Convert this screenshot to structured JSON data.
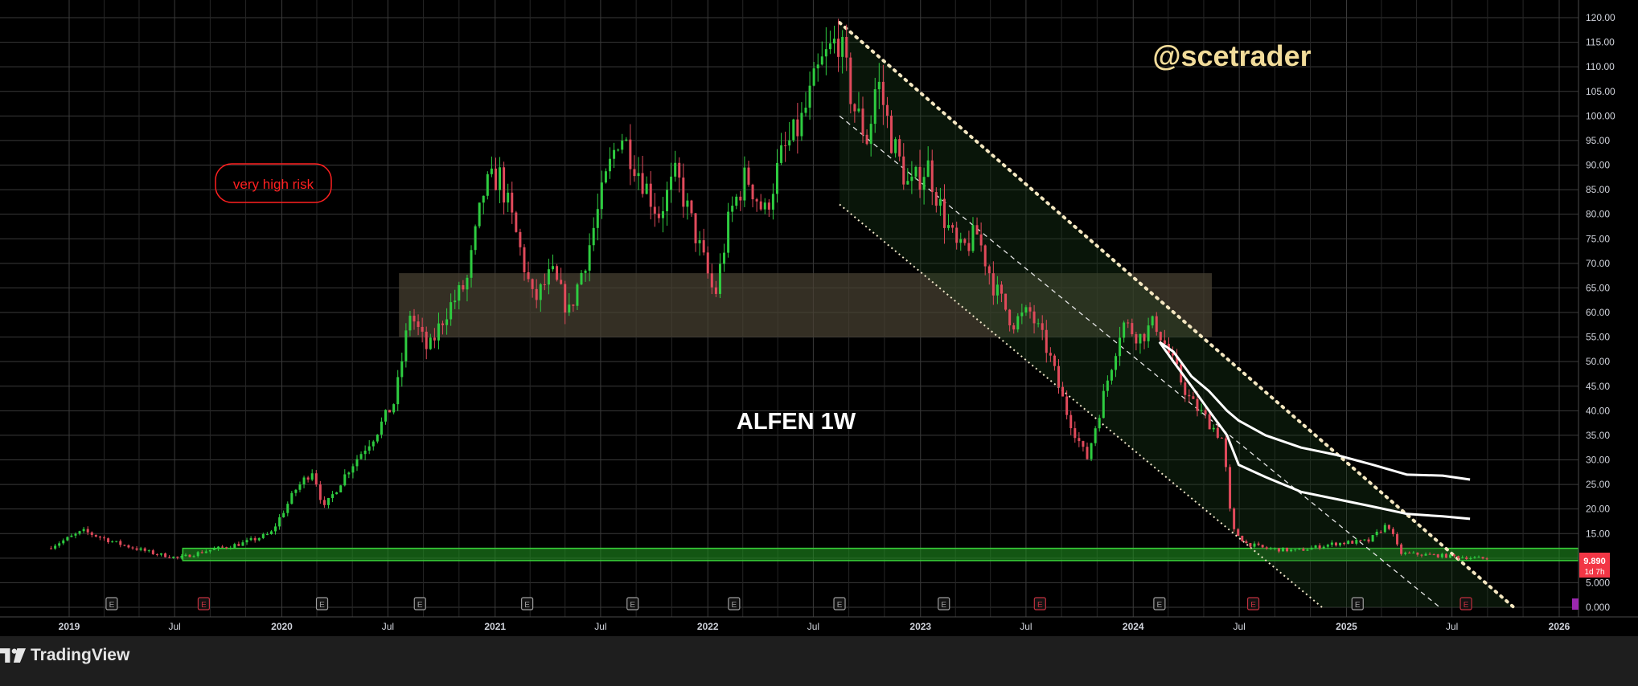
{
  "chart_data": {
    "type": "candlestick",
    "symbol_label": "ALFEN 1W",
    "watermark": "@scetrader",
    "risk_label": "very high risk",
    "ylim": [
      0,
      120
    ],
    "y_ticks": [
      "120.00",
      "115.00",
      "110.00",
      "105.00",
      "100.00",
      "95.00",
      "90.00",
      "85.00",
      "80.00",
      "75.00",
      "70.00",
      "65.00",
      "60.00",
      "55.00",
      "50.00",
      "45.00",
      "40.00",
      "35.00",
      "30.00",
      "25.00",
      "20.00",
      "15.00",
      "10.00",
      "5.000",
      "0.000"
    ],
    "x_ticks": [
      {
        "label": "2019",
        "date": "2019-01-01",
        "bold": true
      },
      {
        "label": "Jul",
        "date": "2019-07-01",
        "bold": false
      },
      {
        "label": "2020",
        "date": "2020-01-01",
        "bold": true
      },
      {
        "label": "Jul",
        "date": "2020-07-01",
        "bold": false
      },
      {
        "label": "2021",
        "date": "2021-01-01",
        "bold": true
      },
      {
        "label": "Jul",
        "date": "2021-07-01",
        "bold": false
      },
      {
        "label": "2022",
        "date": "2022-01-01",
        "bold": true
      },
      {
        "label": "Jul",
        "date": "2022-07-01",
        "bold": false
      },
      {
        "label": "2023",
        "date": "2023-01-01",
        "bold": true
      },
      {
        "label": "Jul",
        "date": "2023-07-01",
        "bold": false
      },
      {
        "label": "2024",
        "date": "2024-01-01",
        "bold": true
      },
      {
        "label": "Jul",
        "date": "2024-07-01",
        "bold": false
      },
      {
        "label": "2025",
        "date": "2025-01-01",
        "bold": true
      },
      {
        "label": "Jul",
        "date": "2025-07-01",
        "bold": false
      },
      {
        "label": "2026",
        "date": "2026-01-01",
        "bold": true
      }
    ],
    "price_anchors": [
      [
        "2018-12-01",
        12.0
      ],
      [
        "2019-02-01",
        15.5
      ],
      [
        "2019-04-01",
        13.0
      ],
      [
        "2019-06-01",
        11.0
      ],
      [
        "2019-07-15",
        10.0
      ],
      [
        "2019-09-01",
        11.5
      ],
      [
        "2019-11-01",
        13.0
      ],
      [
        "2019-12-20",
        15.0
      ],
      [
        "2020-02-01",
        24.0
      ],
      [
        "2020-03-01",
        28.0
      ],
      [
        "2020-03-20",
        20.0
      ],
      [
        "2020-05-01",
        28.0
      ],
      [
        "2020-06-15",
        35.0
      ],
      [
        "2020-07-20",
        42.0
      ],
      [
        "2020-08-15",
        60.0
      ],
      [
        "2020-09-15",
        52.0
      ],
      [
        "2020-10-15",
        60.0
      ],
      [
        "2020-11-20",
        66.0
      ],
      [
        "2020-12-20",
        85.0
      ],
      [
        "2021-01-15",
        88.0
      ],
      [
        "2021-02-15",
        75.0
      ],
      [
        "2021-03-15",
        62.0
      ],
      [
        "2021-04-15",
        68.0
      ],
      [
        "2021-05-15",
        60.0
      ],
      [
        "2021-06-15",
        72.0
      ],
      [
        "2021-07-15",
        86.0
      ],
      [
        "2021-08-10",
        97.0
      ],
      [
        "2021-09-15",
        88.0
      ],
      [
        "2021-10-15",
        80.0
      ],
      [
        "2021-11-15",
        88.0
      ],
      [
        "2021-12-20",
        75.0
      ],
      [
        "2022-01-20",
        63.0
      ],
      [
        "2022-02-15",
        80.0
      ],
      [
        "2022-03-15",
        88.0
      ],
      [
        "2022-04-15",
        80.0
      ],
      [
        "2022-05-15",
        92.0
      ],
      [
        "2022-06-15",
        98.0
      ],
      [
        "2022-07-20",
        110.0
      ],
      [
        "2022-08-20",
        116.0
      ],
      [
        "2022-09-15",
        102.0
      ],
      [
        "2022-10-10",
        95.0
      ],
      [
        "2022-10-25",
        108.0
      ],
      [
        "2022-11-20",
        95.0
      ],
      [
        "2022-12-20",
        85.0
      ],
      [
        "2023-01-20",
        90.0
      ],
      [
        "2023-02-15",
        80.0
      ],
      [
        "2023-03-15",
        72.0
      ],
      [
        "2023-04-15",
        76.0
      ],
      [
        "2023-05-15",
        65.0
      ],
      [
        "2023-06-15",
        58.0
      ],
      [
        "2023-07-15",
        60.0
      ],
      [
        "2023-08-15",
        52.0
      ],
      [
        "2023-09-15",
        40.0
      ],
      [
        "2023-10-20",
        30.0
      ],
      [
        "2023-11-20",
        44.0
      ],
      [
        "2023-12-20",
        58.0
      ],
      [
        "2024-01-20",
        55.0
      ],
      [
        "2024-02-15",
        58.0
      ],
      [
        "2024-03-15",
        50.0
      ],
      [
        "2024-04-15",
        42.0
      ],
      [
        "2024-05-15",
        38.0
      ],
      [
        "2024-06-10",
        34.0
      ],
      [
        "2024-06-25",
        16.0
      ],
      [
        "2024-07-20",
        13.0
      ],
      [
        "2024-08-20",
        12.0
      ],
      [
        "2024-10-15",
        11.5
      ],
      [
        "2024-12-20",
        13.0
      ],
      [
        "2025-02-15",
        13.5
      ],
      [
        "2025-03-20",
        17.0
      ],
      [
        "2025-04-10",
        11.0
      ],
      [
        "2025-06-20",
        10.5
      ],
      [
        "2025-08-20",
        10.0
      ],
      [
        "2025-09-01",
        9.89
      ]
    ],
    "last_price": "9.890",
    "last_price_countdown": "1d 7h",
    "support_zone": [
      9.5,
      12.0
    ],
    "resistance_zone": [
      55.0,
      68.0
    ],
    "channel": {
      "top": [
        [
          "2022-08-15",
          119.0
        ],
        [
          "2025-10-15",
          0.0
        ]
      ],
      "middle": [
        [
          "2022-08-15",
          100.0
        ],
        [
          "2025-06-10",
          0.0
        ]
      ],
      "bottom": [
        [
          "2022-08-15",
          82.0
        ],
        [
          "2024-11-20",
          0.0
        ]
      ]
    },
    "moving_averages": [
      [
        [
          "2024-02-15",
          54.0
        ],
        [
          "2024-03-10",
          52.0
        ],
        [
          "2024-04-10",
          47.0
        ],
        [
          "2024-05-10",
          44.0
        ],
        [
          "2024-06-10",
          40.0
        ],
        [
          "2024-06-30",
          38.0
        ],
        [
          "2024-08-15",
          35.0
        ],
        [
          "2024-10-15",
          32.5
        ],
        [
          "2024-12-15",
          31.0
        ],
        [
          "2025-02-15",
          29.0
        ],
        [
          "2025-04-15",
          27.0
        ],
        [
          "2025-06-15",
          26.8
        ],
        [
          "2025-08-01",
          26.0
        ]
      ],
      [
        [
          "2024-02-15",
          54.0
        ],
        [
          "2024-03-10",
          50.0
        ],
        [
          "2024-04-10",
          45.0
        ],
        [
          "2024-05-10",
          40.0
        ],
        [
          "2024-06-10",
          35.0
        ],
        [
          "2024-06-30",
          29.0
        ],
        [
          "2024-08-15",
          26.5
        ],
        [
          "2024-10-15",
          23.5
        ],
        [
          "2024-12-15",
          22.0
        ],
        [
          "2025-02-15",
          20.5
        ],
        [
          "2025-04-15",
          19.0
        ],
        [
          "2025-06-15",
          18.5
        ],
        [
          "2025-08-01",
          18.0
        ]
      ]
    ],
    "earnings_markers": [
      {
        "label": "E",
        "date": "2019-03-15",
        "color": "#9e9e9e"
      },
      {
        "label": "E",
        "date": "2019-08-20",
        "color": "#c2313f"
      },
      {
        "label": "E",
        "date": "2020-03-10",
        "color": "#9e9e9e"
      },
      {
        "label": "E",
        "date": "2020-08-25",
        "color": "#9e9e9e"
      },
      {
        "label": "E",
        "date": "2021-02-25",
        "color": "#9e9e9e"
      },
      {
        "label": "E",
        "date": "2021-08-25",
        "color": "#9e9e9e"
      },
      {
        "label": "E",
        "date": "2022-02-15",
        "color": "#9e9e9e"
      },
      {
        "label": "E",
        "date": "2022-08-15",
        "color": "#9e9e9e"
      },
      {
        "label": "E",
        "date": "2023-02-10",
        "color": "#9e9e9e"
      },
      {
        "label": "E",
        "date": "2023-07-25",
        "color": "#c2313f"
      },
      {
        "label": "E",
        "date": "2024-02-15",
        "color": "#9e9e9e"
      },
      {
        "label": "E",
        "date": "2024-07-25",
        "color": "#c2313f"
      },
      {
        "label": "E",
        "date": "2025-01-20",
        "color": "#9e9e9e"
      },
      {
        "label": "E",
        "date": "2025-07-25",
        "color": "#c2313f"
      }
    ],
    "colors": {
      "background": "#000000",
      "grid": "#3a3a3a",
      "up": "#2ecc40",
      "down": "#e04a5b",
      "risk": "#ff2020",
      "watermark": "#f2dc9a",
      "channel_top": "#f5e7c0",
      "resistance_fill": "#4a4333",
      "support_fill": "#1f8f1f",
      "price_label": "#f23645",
      "axis_text": "#d1d4dc"
    }
  },
  "footer": {
    "brand": "TradingView"
  }
}
